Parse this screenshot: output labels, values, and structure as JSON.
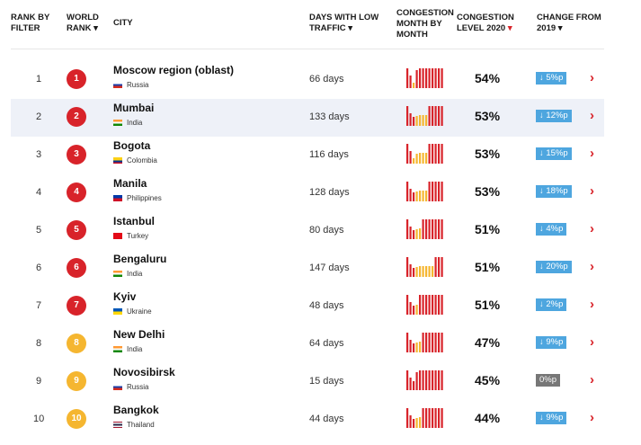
{
  "header": {
    "rank_by_filter": [
      "RANK BY",
      "FILTER"
    ],
    "world_rank": [
      "WORLD",
      "RANK ▾"
    ],
    "city": "CITY",
    "days_low_traffic": [
      "DAYS WITH LOW",
      "TRAFFIC ▾"
    ],
    "congestion_month": [
      "CONGESTION",
      "MONTH BY",
      "MONTH"
    ],
    "congestion_level": [
      "CONGESTION",
      "LEVEL 2020",
      "▾"
    ],
    "change_from": [
      "CHANGE FROM",
      "2019 ▾"
    ]
  },
  "colors": {
    "red": "#d8232a",
    "orange": "#f5b630",
    "change_blue": "#4ea6df",
    "change_grey": "#777777",
    "row_alt": "#eef1f8"
  },
  "rows": [
    {
      "rank": "1",
      "world_rank": "1",
      "badge": "red",
      "city": "Moscow region (oblast)",
      "country": "Russia",
      "flag": "russia",
      "days": "66 days",
      "level": "54%",
      "change": "↓ 5%p",
      "change_type": "down",
      "bars": [
        "r",
        "r",
        "y",
        "r",
        "r",
        "r",
        "r",
        "r",
        "r",
        "r",
        "r",
        "r"
      ]
    },
    {
      "rank": "2",
      "world_rank": "2",
      "badge": "red",
      "city": "Mumbai",
      "country": "India",
      "flag": "india",
      "days": "133 days",
      "level": "53%",
      "change": "↓ 12%p",
      "change_type": "down",
      "bars": [
        "r",
        "r",
        "r",
        "y",
        "y",
        "y",
        "y",
        "r",
        "r",
        "r",
        "r",
        "r"
      ]
    },
    {
      "rank": "3",
      "world_rank": "3",
      "badge": "red",
      "city": "Bogota",
      "country": "Colombia",
      "flag": "colombia",
      "days": "116 days",
      "level": "53%",
      "change": "↓ 15%p",
      "change_type": "down",
      "bars": [
        "r",
        "r",
        "y",
        "y",
        "y",
        "y",
        "y",
        "r",
        "r",
        "r",
        "r",
        "r"
      ]
    },
    {
      "rank": "4",
      "world_rank": "4",
      "badge": "red",
      "city": "Manila",
      "country": "Philippines",
      "flag": "philippines",
      "days": "128 days",
      "level": "53%",
      "change": "↓ 18%p",
      "change_type": "down",
      "bars": [
        "r",
        "r",
        "r",
        "y",
        "y",
        "y",
        "y",
        "r",
        "r",
        "r",
        "r",
        "r"
      ]
    },
    {
      "rank": "5",
      "world_rank": "5",
      "badge": "red",
      "city": "Istanbul",
      "country": "Turkey",
      "flag": "turkey",
      "days": "80 days",
      "level": "51%",
      "change": "↓ 4%p",
      "change_type": "down",
      "bars": [
        "r",
        "r",
        "r",
        "y",
        "y",
        "r",
        "r",
        "r",
        "r",
        "r",
        "r",
        "r"
      ]
    },
    {
      "rank": "6",
      "world_rank": "6",
      "badge": "red",
      "city": "Bengaluru",
      "country": "India",
      "flag": "india",
      "days": "147 days",
      "level": "51%",
      "change": "↓ 20%p",
      "change_type": "down",
      "bars": [
        "r",
        "r",
        "r",
        "y",
        "y",
        "y",
        "y",
        "y",
        "y",
        "r",
        "r",
        "r"
      ]
    },
    {
      "rank": "7",
      "world_rank": "7",
      "badge": "red",
      "city": "Kyiv",
      "country": "Ukraine",
      "flag": "ukraine",
      "days": "48 days",
      "level": "51%",
      "change": "↓ 2%p",
      "change_type": "down",
      "bars": [
        "r",
        "r",
        "r",
        "y",
        "r",
        "r",
        "r",
        "r",
        "r",
        "r",
        "r",
        "r"
      ]
    },
    {
      "rank": "8",
      "world_rank": "8",
      "badge": "orange",
      "city": "New Delhi",
      "country": "India",
      "flag": "india",
      "days": "64 days",
      "level": "47%",
      "change": "↓ 9%p",
      "change_type": "down",
      "bars": [
        "r",
        "r",
        "r",
        "y",
        "y",
        "r",
        "r",
        "r",
        "r",
        "r",
        "r",
        "r"
      ]
    },
    {
      "rank": "9",
      "world_rank": "9",
      "badge": "orange",
      "city": "Novosibirsk",
      "country": "Russia",
      "flag": "russia",
      "days": "15 days",
      "level": "45%",
      "change": "0%p",
      "change_type": "zero",
      "bars": [
        "r",
        "r",
        "r",
        "r",
        "r",
        "r",
        "r",
        "r",
        "r",
        "r",
        "r",
        "r"
      ]
    },
    {
      "rank": "10",
      "world_rank": "10",
      "badge": "orange",
      "city": "Bangkok",
      "country": "Thailand",
      "flag": "thailand",
      "days": "44 days",
      "level": "44%",
      "change": "↓ 9%p",
      "change_type": "down",
      "bars": [
        "r",
        "r",
        "r",
        "y",
        "y",
        "r",
        "r",
        "r",
        "r",
        "r",
        "r",
        "r"
      ]
    }
  ]
}
